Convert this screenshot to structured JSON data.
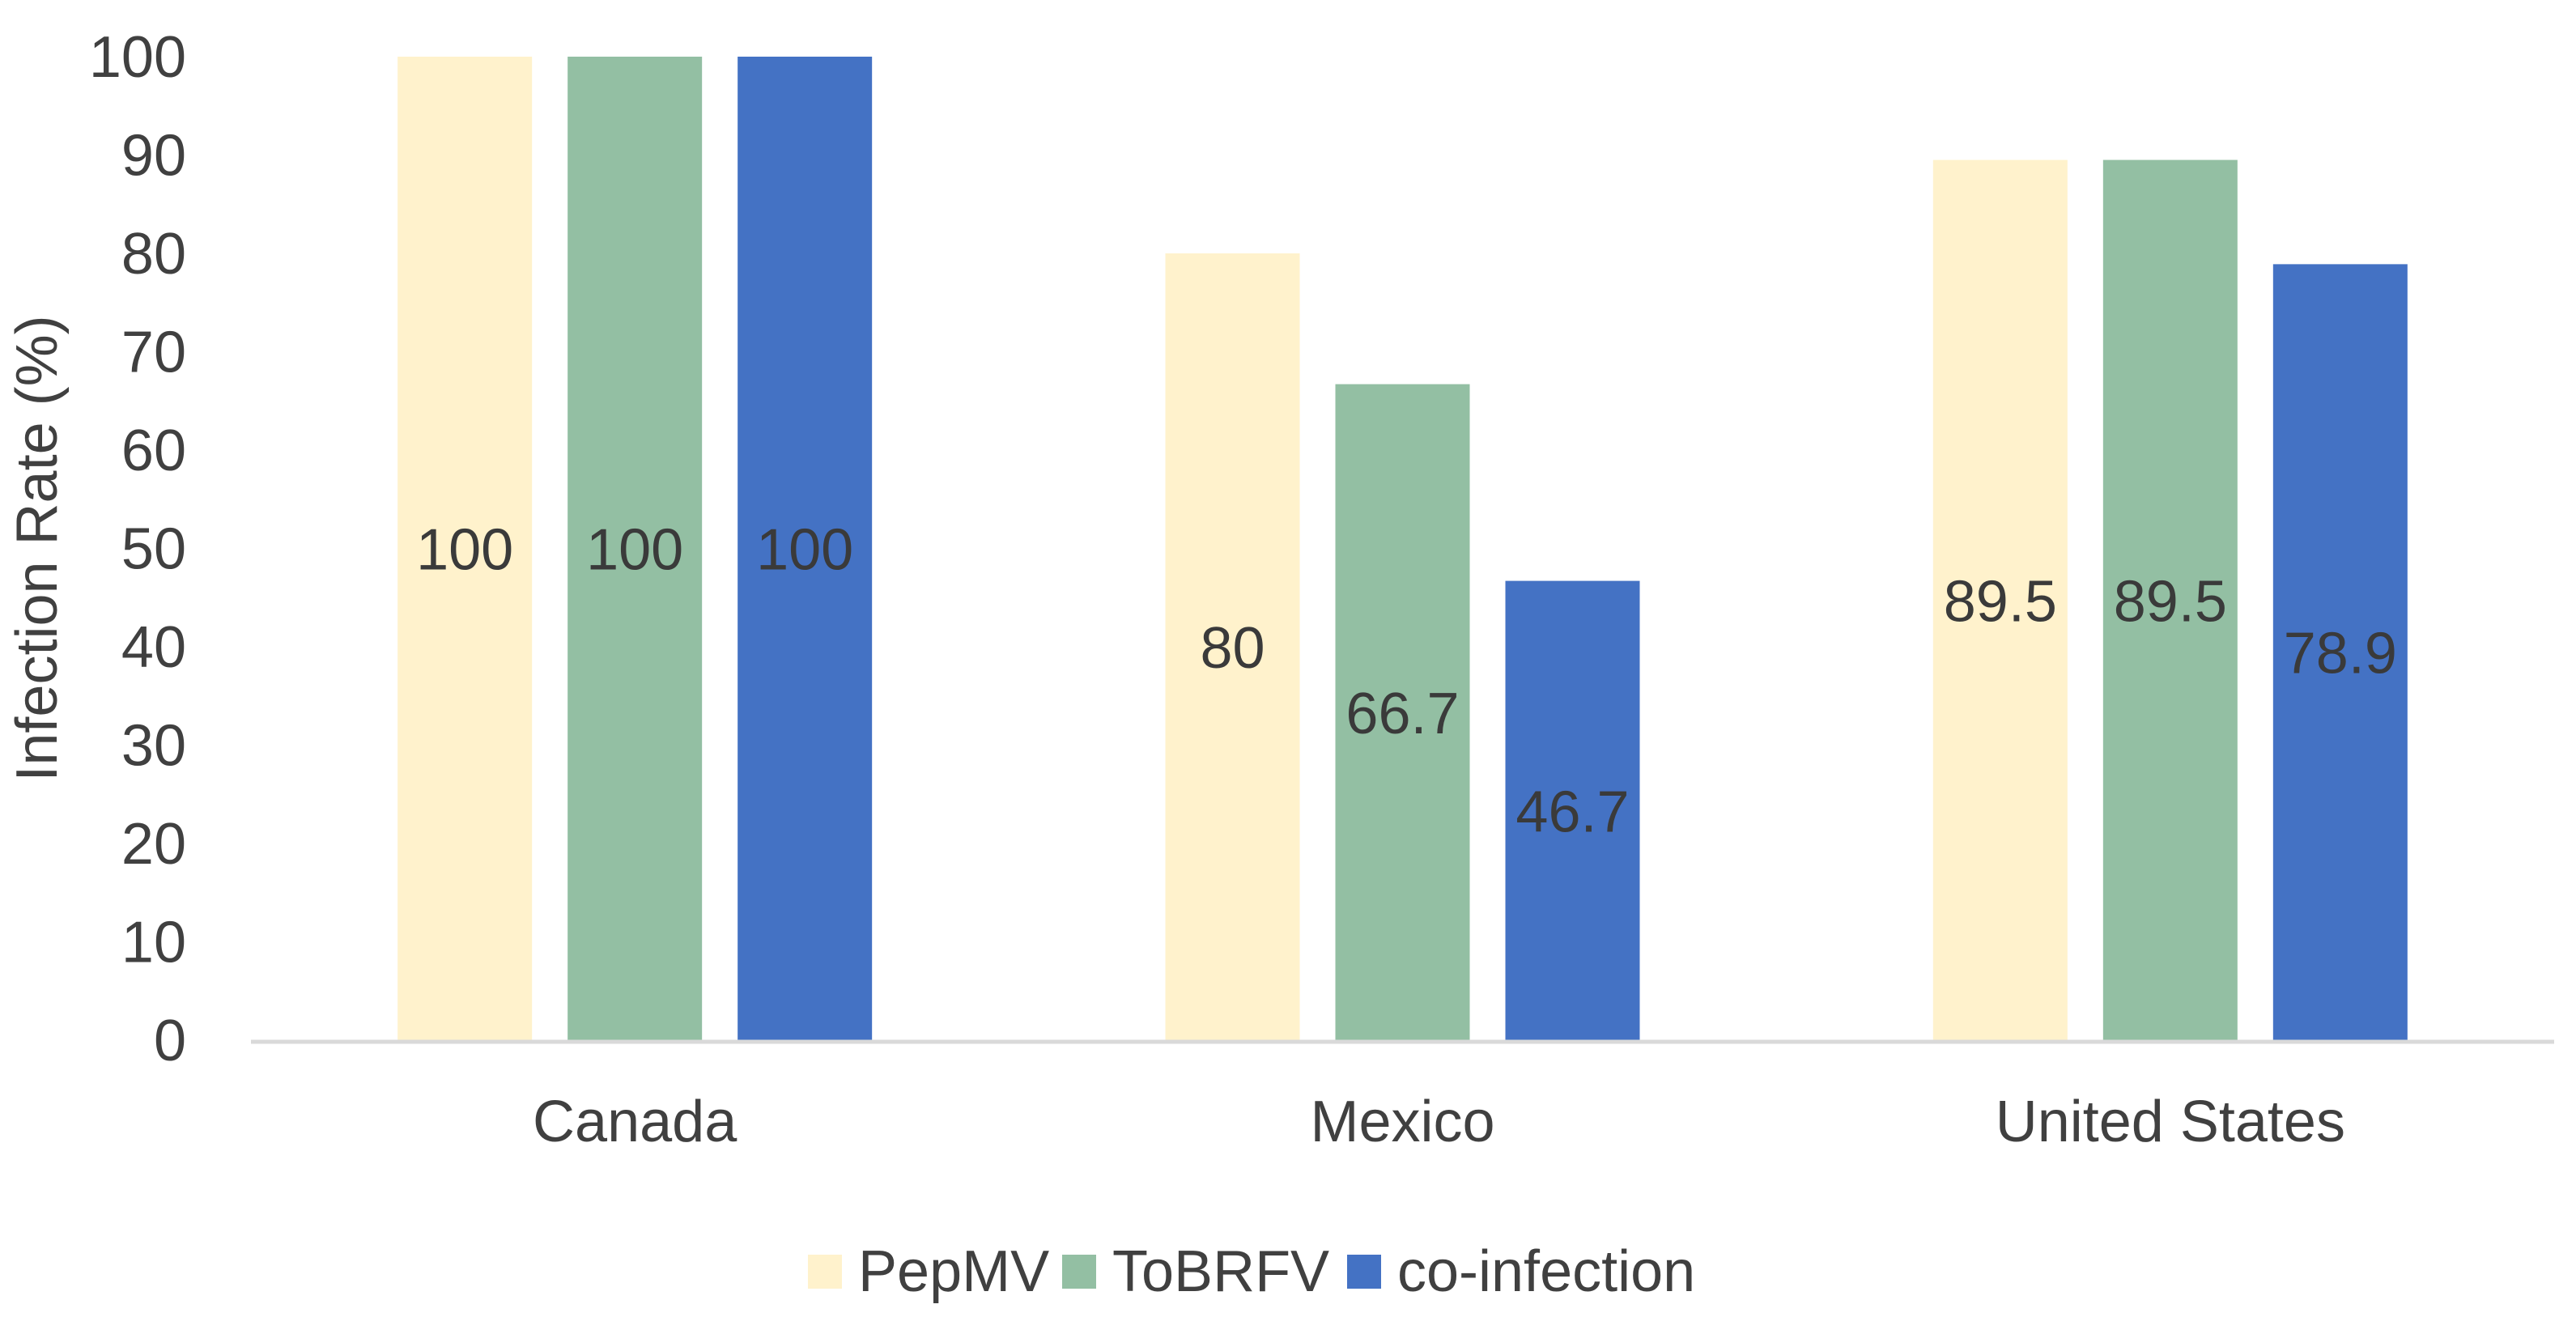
{
  "chart_data": {
    "type": "bar",
    "title": "",
    "xlabel": "",
    "ylabel": "Infection Rate (%)",
    "ylim": [
      0,
      100
    ],
    "yticks": [
      0,
      10,
      20,
      30,
      40,
      50,
      60,
      70,
      80,
      90,
      100
    ],
    "grid": false,
    "legend_position": "bottom",
    "categories": [
      "Canada",
      "Mexico",
      "United States"
    ],
    "series": [
      {
        "name": "PepMV",
        "color": "#FFF2CC",
        "values": [
          100,
          80,
          89.5
        ],
        "labels": [
          "100",
          "80",
          "89.5"
        ]
      },
      {
        "name": "ToBRFV",
        "color": "#93BFA3",
        "values": [
          100,
          66.7,
          89.5
        ],
        "labels": [
          "100",
          "66.7",
          "89.5"
        ]
      },
      {
        "name": "co-infection",
        "color": "#4472C4",
        "values": [
          100,
          46.7,
          78.9
        ],
        "labels": [
          "100",
          "46.7",
          "78.9"
        ]
      }
    ],
    "axis_color": "#D9D9D9",
    "text_color": "#404040"
  }
}
